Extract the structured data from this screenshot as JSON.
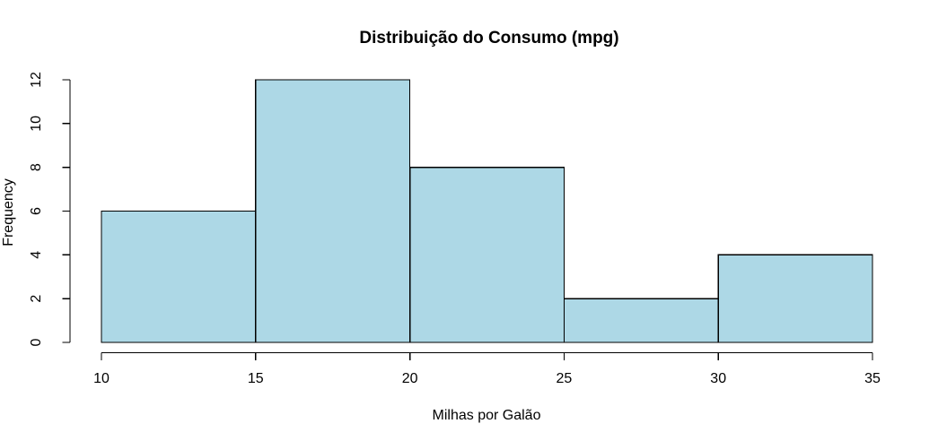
{
  "chart_data": {
    "type": "bar",
    "subtype": "histogram",
    "title": "Distribuição do Consumo (mpg)",
    "xlabel": "Milhas por Galão",
    "ylabel": "Frequency",
    "bin_edges": [
      10,
      15,
      20,
      25,
      30,
      35
    ],
    "counts": [
      6,
      12,
      8,
      2,
      4
    ],
    "x_ticks": [
      10,
      15,
      20,
      25,
      30,
      35
    ],
    "y_ticks": [
      0,
      2,
      4,
      6,
      8,
      10,
      12
    ],
    "xlim": [
      10,
      35
    ],
    "ylim": [
      0,
      12
    ],
    "grid": false,
    "legend": null,
    "colors": {
      "bar_fill": "#ADD8E6",
      "bar_stroke": "#000000",
      "axis": "#000000",
      "text": "#000000",
      "background": "#FFFFFF"
    }
  }
}
